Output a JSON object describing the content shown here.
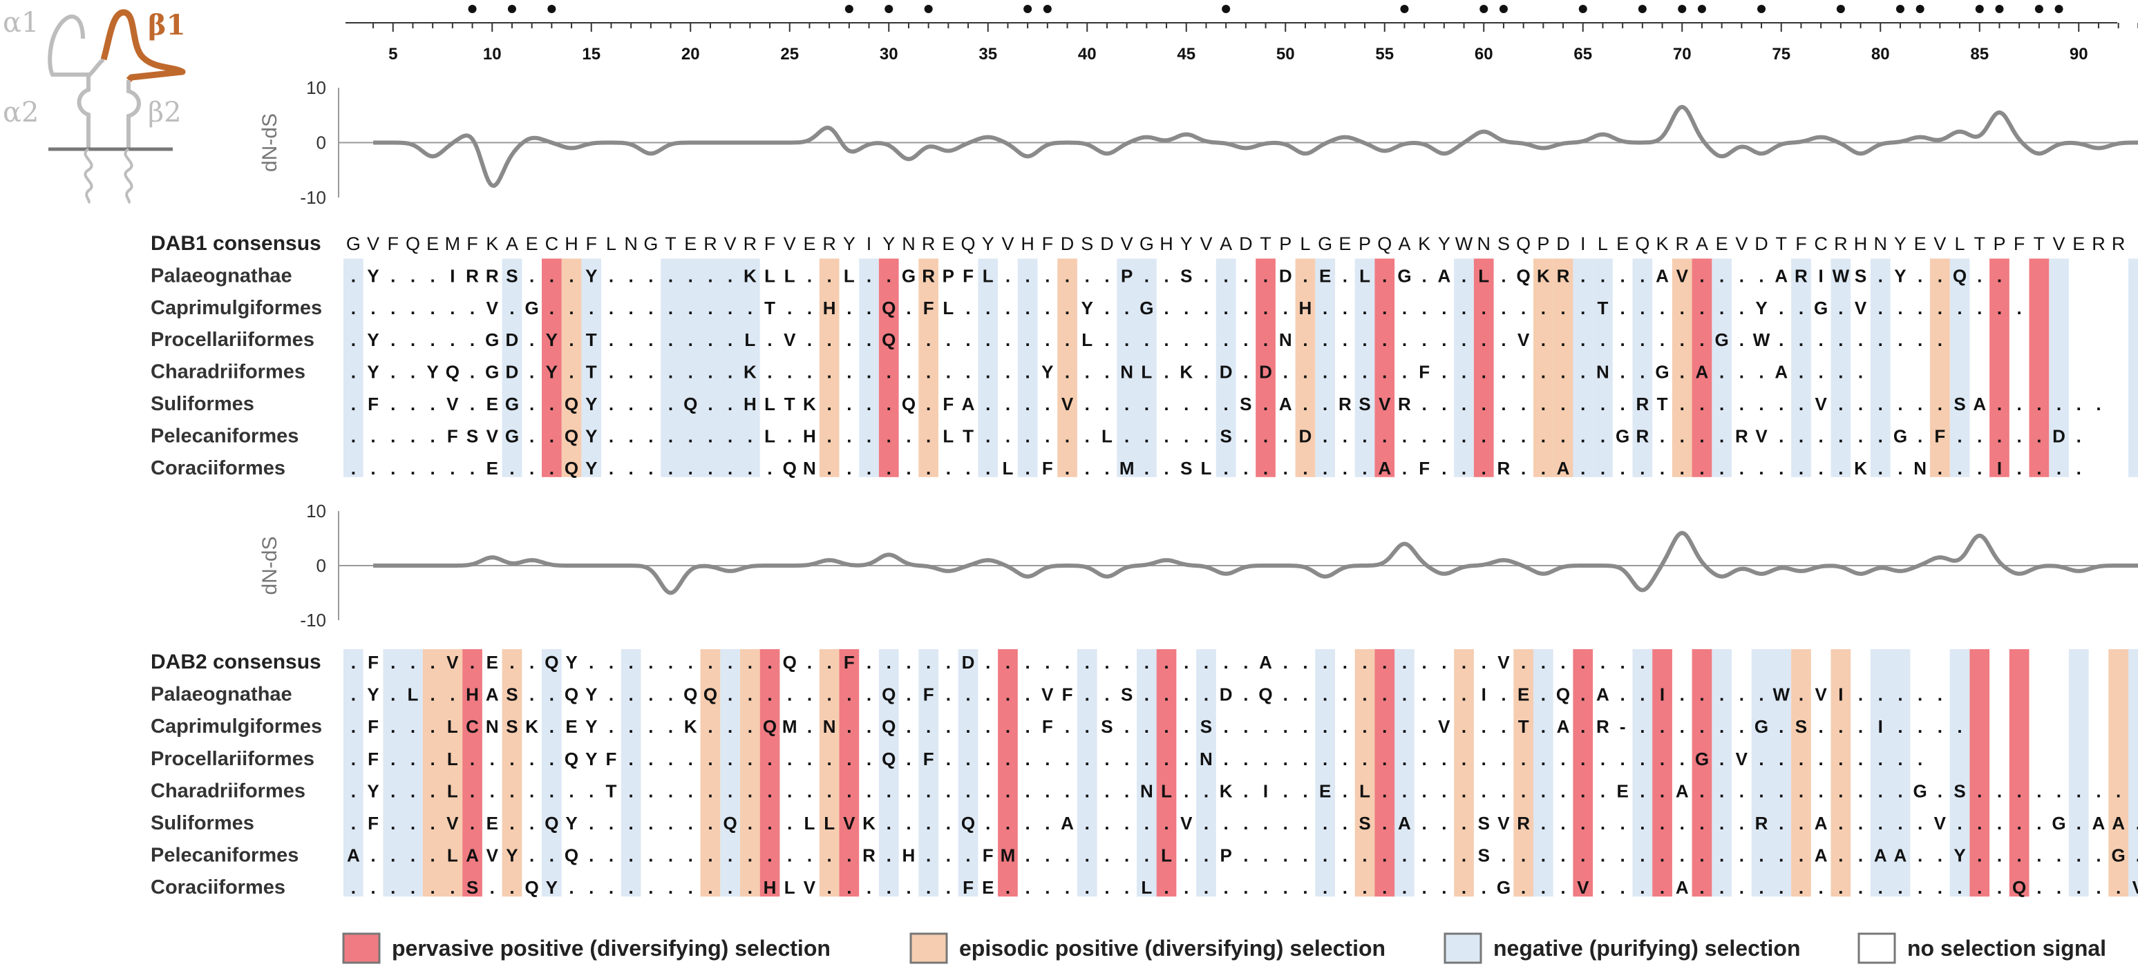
{
  "colors": {
    "pervasive": "#f07b82",
    "episodic": "#f6cdb0",
    "negative": "#dce8f4",
    "none": "#ffffff",
    "curve": "#8a8a8a",
    "beta1": "#c0692d",
    "light_grey": "#bdbdbd"
  },
  "icon": {
    "alpha1": "α1",
    "beta1": "β1",
    "alpha2": "α2",
    "beta2": "β2"
  },
  "ruler": {
    "start": 4,
    "end": 94,
    "ticks": [
      5,
      10,
      15,
      20,
      25,
      30,
      35,
      40,
      45,
      50,
      55,
      60,
      65,
      70,
      75,
      80,
      85,
      90
    ],
    "dots": [
      9,
      11,
      13,
      28,
      30,
      32,
      37,
      38,
      47,
      56,
      60,
      61,
      65,
      68,
      70,
      71,
      74,
      78,
      81,
      82,
      85,
      86,
      88,
      89
    ]
  },
  "dnds_plots": [
    {
      "ylabel": "dN-dS",
      "yticks": [
        "10",
        "0",
        "-10"
      ],
      "ylim": [
        -10,
        10
      ],
      "peaks": [
        [
          7,
          -2.5
        ],
        [
          9,
          2
        ],
        [
          10,
          -8
        ],
        [
          11,
          -1
        ],
        [
          12,
          1
        ],
        [
          14,
          -1
        ],
        [
          18,
          -2
        ],
        [
          27,
          3
        ],
        [
          28,
          -2
        ],
        [
          31,
          -3
        ],
        [
          33,
          -1.5
        ],
        [
          35,
          1
        ],
        [
          37,
          -2.5
        ],
        [
          41,
          -2
        ],
        [
          43,
          1
        ],
        [
          45,
          1.5
        ],
        [
          48,
          -1
        ],
        [
          51,
          -2
        ],
        [
          53,
          1
        ],
        [
          55,
          -1.5
        ],
        [
          58,
          -2
        ],
        [
          60,
          2
        ],
        [
          63,
          -1
        ],
        [
          66,
          1.5
        ],
        [
          70,
          6.5
        ],
        [
          72,
          -2.5
        ],
        [
          74,
          -2
        ],
        [
          77,
          1
        ],
        [
          79,
          -2
        ],
        [
          82,
          1
        ],
        [
          84,
          2
        ],
        [
          86,
          5.5
        ],
        [
          88,
          -2
        ],
        [
          91,
          -1
        ]
      ]
    },
    {
      "ylabel": "dN-dS",
      "yticks": [
        "10",
        "0",
        "-10"
      ],
      "ylim": [
        -10,
        10
      ],
      "peaks": [
        [
          10,
          1.5
        ],
        [
          12,
          1
        ],
        [
          19,
          -5
        ],
        [
          22,
          -1
        ],
        [
          27,
          1
        ],
        [
          30,
          2
        ],
        [
          33,
          -1
        ],
        [
          35,
          1
        ],
        [
          37,
          -2
        ],
        [
          41,
          -2
        ],
        [
          44,
          1
        ],
        [
          47,
          -1.5
        ],
        [
          52,
          -2
        ],
        [
          56,
          4
        ],
        [
          58,
          -1.5
        ],
        [
          61,
          1
        ],
        [
          63,
          -1.5
        ],
        [
          68,
          -4.5
        ],
        [
          70,
          6
        ],
        [
          72,
          -2
        ],
        [
          74,
          -1.5
        ],
        [
          76,
          -1
        ],
        [
          79,
          -1.5
        ],
        [
          81,
          -1
        ],
        [
          83,
          1.5
        ],
        [
          85,
          5.5
        ],
        [
          87,
          -1.5
        ],
        [
          90,
          -1
        ]
      ]
    }
  ],
  "dab1": {
    "consensus_label": "DAB1 consensus",
    "consensus": "GVFQEMFKAECHFLNGTERVRFVERYIYNREQYVHFDSDVGHYVADTPLGEPQAKYWNSQPDILEQKRAEVDTFCRHNYEVLTPFTVERR",
    "species": [
      {
        "name": "Palaeognathae",
        "seq": ".Y...IRRS...Y.......KLL..L..GRPFL......P..S....D.E.L.G.A.L.QKR....AV....ARIWS.Y..Q.."
      },
      {
        "name": "Caprimulgiformes",
        "seq": ".......V.G...........T..H..Q.FL......Y..G.......H..............T.......Y..G.V........"
      },
      {
        "name": "Procellariiformes",
        "seq": ".Y.....GD.Y.T.......L.V....Q.........L.........N...........V.........G.W........."
      },
      {
        "name": "Charadriiformes",
        "seq": ".Y..YQ.GD.Y.T.......K..............Y...NL.K.D.D.......F........N..G.A...A...."
      },
      {
        "name": "Suliformes",
        "seq": ".F...V.EG..QY....Q..HLTK....Q.FA....V........S.A..RSVR...........RT.......V......SA......"
      },
      {
        "name": "Pelecaniformes",
        "seq": ".....FSVG..QY........L.H......LT......L.....S...D...............GR....RV......G.F.....D."
      },
      {
        "name": "Coraciiformes",
        "seq": ".......E...QY.........QN.........L.F...M..SL........A.F...R..A..............K..N...I...."
      }
    ],
    "columns": {
      "pervasive": [
        10,
        27,
        46,
        52,
        57,
        68,
        83,
        85
      ],
      "episodic": [
        11,
        24,
        29,
        36,
        48,
        60,
        61,
        67,
        80
      ],
      "negative": [
        0,
        8,
        12,
        16,
        17,
        18,
        19,
        20,
        26,
        32,
        34,
        39,
        40,
        44,
        49,
        51,
        56,
        62,
        63,
        65,
        69,
        73,
        75,
        77,
        81,
        86,
        90,
        91
      ]
    }
  },
  "dab2": {
    "consensus_label": "DAB2 consensus",
    "consensus": ".F...V.E..QY..........Q..F.....D..............A...........V.......",
    "species": [
      {
        "name": "Palaeognathae",
        "seq": ".Y.L..HAS..QY....QQ........Q.F.....VF..S....D.Q..........I.E.Q.A..I.....W.VI.....",
        "ignored": false
      },
      {
        "name": "Caprimulgiformes",
        "seq": ".F...LCNSK.EY....K...QM.N..Q.......F..S....S...........V...T.A.R-......G.S...I...."
      },
      {
        "name": "Procellariiformes",
        "seq": ".F...L.....QYF.............Q.F.............N........................G.V........."
      },
      {
        "name": "Charadriiformes",
        "seq": ".Y...L.......T..........................NL..K.I..E.L............E..A...........G.S........"
      },
      {
        "name": "Suliformes",
        "seq": ".F...V.E..QY.......Q...LLVK....Q....A.....V........S.A...SVR...........R..A.....V.....G.AA......"
      },
      {
        "name": "Pelecaniformes",
        "seq": "A....LAVY..Q..............R.H...FM.......L..P............S................A..AA..Y.......G.V........"
      },
      {
        "name": "Coraciiformes",
        "seq": "......S..QY..........HLV.......FE.......L.................G...V....A................Q.....V.G.K"
      }
    ],
    "columns": {
      "pervasive": [
        6,
        21,
        25,
        33,
        41,
        52,
        62,
        66,
        68,
        82,
        84
      ],
      "episodic": [
        4,
        5,
        8,
        18,
        20,
        24,
        51,
        56,
        59,
        73,
        75,
        89
      ],
      "negative": [
        0,
        2,
        3,
        10,
        14,
        19,
        27,
        29,
        31,
        37,
        40,
        43,
        49,
        53,
        60,
        65,
        69,
        71,
        72,
        77,
        78,
        81,
        87,
        90
      ]
    }
  },
  "legend": [
    {
      "key": "pervasive",
      "label": "pervasive positive (diversifying) selection"
    },
    {
      "key": "episodic",
      "label": "episodic positive (diversifying) selection"
    },
    {
      "key": "negative",
      "label": "negative (purifying) selection"
    },
    {
      "key": "none",
      "label": "no selection signal"
    }
  ]
}
